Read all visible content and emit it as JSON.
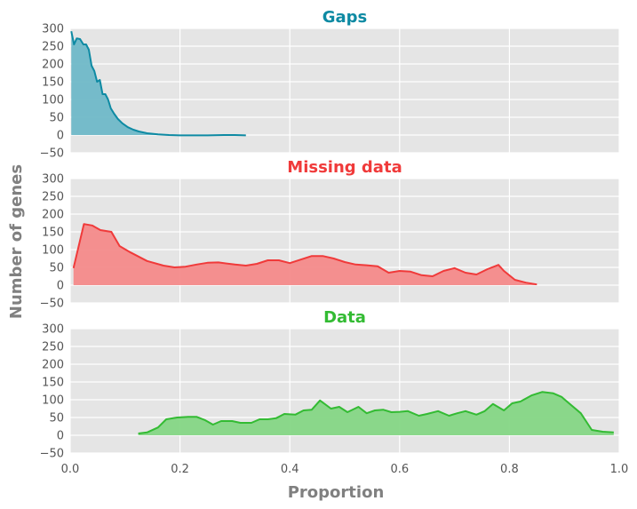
{
  "chart_data": {
    "type": "area",
    "xlabel": "Proportion",
    "ylabel": "Number of genes",
    "xlim": [
      0.0,
      1.0
    ],
    "ylim": [
      -50,
      300
    ],
    "x_ticks": [
      "0.0",
      "0.2",
      "0.4",
      "0.6",
      "0.8",
      "1.0"
    ],
    "y_ticks": [
      "−50",
      "0",
      "50",
      "100",
      "150",
      "200",
      "250",
      "300"
    ],
    "grid": true,
    "panels": [
      {
        "title": "Gaps",
        "color": "#0e8aa3",
        "fill": "#6fb8c8",
        "series": [
          {
            "x": [
              0.002,
              0.007,
              0.012,
              0.018,
              0.024,
              0.029,
              0.034,
              0.039,
              0.044,
              0.049,
              0.054,
              0.059,
              0.064,
              0.069,
              0.074,
              0.08,
              0.087,
              0.095,
              0.105,
              0.115,
              0.125,
              0.14,
              0.16,
              0.18,
              0.2,
              0.22,
              0.25,
              0.28,
              0.3,
              0.32
            ],
            "y": [
              292,
              255,
              272,
              270,
              255,
              255,
              240,
              195,
              180,
              150,
              155,
              115,
              115,
              100,
              75,
              60,
              45,
              33,
              22,
              15,
              10,
              5,
              2,
              0,
              -1,
              -1,
              -1,
              0,
              0,
              -1
            ]
          }
        ]
      },
      {
        "title": "Missing data",
        "color": "#f03a3a",
        "fill": "#f48a8a",
        "series": [
          {
            "x": [
              0.006,
              0.025,
              0.04,
              0.055,
              0.075,
              0.09,
              0.11,
              0.14,
              0.17,
              0.19,
              0.21,
              0.23,
              0.25,
              0.27,
              0.3,
              0.32,
              0.34,
              0.36,
              0.38,
              0.4,
              0.42,
              0.44,
              0.46,
              0.48,
              0.5,
              0.52,
              0.54,
              0.56,
              0.58,
              0.6,
              0.62,
              0.64,
              0.66,
              0.68,
              0.7,
              0.72,
              0.74,
              0.76,
              0.78,
              0.79,
              0.81,
              0.83,
              0.85
            ],
            "y": [
              48,
              172,
              168,
              155,
              150,
              110,
              92,
              68,
              55,
              50,
              52,
              58,
              63,
              64,
              58,
              55,
              60,
              70,
              70,
              62,
              72,
              82,
              82,
              75,
              65,
              58,
              56,
              53,
              35,
              40,
              38,
              28,
              25,
              40,
              48,
              35,
              30,
              45,
              57,
              40,
              15,
              7,
              2
            ]
          }
        ]
      },
      {
        "title": "Data",
        "color": "#33bb33",
        "fill": "#85d685",
        "series": [
          {
            "x": [
              0.124,
              0.14,
              0.16,
              0.175,
              0.195,
              0.215,
              0.23,
              0.245,
              0.26,
              0.275,
              0.295,
              0.31,
              0.33,
              0.345,
              0.36,
              0.375,
              0.39,
              0.41,
              0.425,
              0.44,
              0.455,
              0.475,
              0.49,
              0.505,
              0.525,
              0.54,
              0.555,
              0.57,
              0.585,
              0.6,
              0.615,
              0.635,
              0.65,
              0.67,
              0.69,
              0.705,
              0.72,
              0.74,
              0.755,
              0.77,
              0.79,
              0.805,
              0.82,
              0.84,
              0.86,
              0.88,
              0.895,
              0.91,
              0.93,
              0.95,
              0.97,
              0.99
            ],
            "y": [
              5,
              8,
              22,
              45,
              50,
              52,
              52,
              43,
              30,
              40,
              40,
              35,
              35,
              45,
              45,
              48,
              60,
              58,
              70,
              72,
              98,
              75,
              80,
              65,
              80,
              62,
              70,
              72,
              65,
              66,
              68,
              55,
              60,
              68,
              55,
              62,
              68,
              58,
              68,
              88,
              70,
              90,
              95,
              112,
              122,
              118,
              108,
              88,
              62,
              15,
              10,
              8
            ]
          }
        ]
      }
    ]
  }
}
